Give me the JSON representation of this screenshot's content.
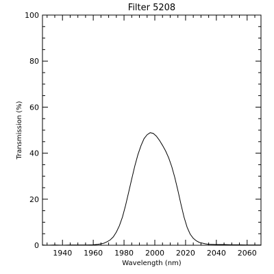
{
  "chart_data": {
    "type": "line",
    "title": "Filter 5208",
    "xlabel": "Wavelength (nm)",
    "ylabel": "Transmission (%)",
    "xlim": [
      1927,
      2069
    ],
    "ylim": [
      0,
      100
    ],
    "xticks": [
      1940,
      1960,
      1980,
      2000,
      2020,
      2040,
      2060
    ],
    "xtick_labels": [
      "1940",
      "1960",
      "1980",
      "2000",
      "2020",
      "2040",
      "2060"
    ],
    "yticks": [
      0,
      20,
      40,
      60,
      80,
      100
    ],
    "ytick_labels": [
      "0",
      "20",
      "40",
      "60",
      "80",
      "100"
    ],
    "grid": false,
    "series": [
      {
        "x": [
          1927,
          1930,
          1935,
          1940,
          1945,
          1950,
          1955,
          1960,
          1963,
          1965,
          1967,
          1969,
          1971,
          1973,
          1975,
          1977,
          1979,
          1981,
          1983,
          1985,
          1987,
          1989,
          1991,
          1993,
          1995,
          1997,
          1999,
          2001,
          2003,
          2005,
          2007,
          2009,
          2011,
          2013,
          2015,
          2017,
          2019,
          2021,
          2023,
          2025,
          2027,
          2029,
          2031,
          2033,
          2035,
          2040,
          2045,
          2050,
          2055,
          2060,
          2065,
          2069
        ],
        "y": [
          0.1,
          0.0,
          0.1,
          0.0,
          0.1,
          0.1,
          0.1,
          0.2,
          0.4,
          0.6,
          0.9,
          1.5,
          2.3,
          3.6,
          5.7,
          8.5,
          12.3,
          17.3,
          23.0,
          28.8,
          34.4,
          39.3,
          43.2,
          46.3,
          48.0,
          48.9,
          48.6,
          47.4,
          45.6,
          43.4,
          41.0,
          38.0,
          34.2,
          29.4,
          23.8,
          17.8,
          12.2,
          7.8,
          4.8,
          3.0,
          1.9,
          1.2,
          0.9,
          0.6,
          0.4,
          0.3,
          0.3,
          0.2,
          0.2,
          0.1,
          0.1,
          0.1
        ]
      }
    ]
  }
}
